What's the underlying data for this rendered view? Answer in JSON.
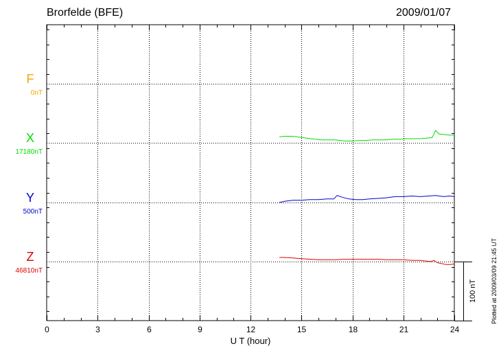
{
  "header": {
    "station": "Brorfelde (BFE)",
    "date": "2009/01/07"
  },
  "footer": {
    "plotted_note": "Plotted at 2009/03/09 21:45 UT"
  },
  "chart_data": {
    "type": "line",
    "xlabel": "U T (hour)",
    "xlim": [
      0,
      24
    ],
    "xticks": [
      0,
      3,
      6,
      9,
      12,
      15,
      18,
      21,
      24
    ],
    "x_tick_labels": [
      "0",
      "3",
      "6",
      "9",
      "12",
      "15",
      "18",
      "21",
      "24"
    ],
    "grid": true,
    "scale_bar_label": "100 nT",
    "scale_bar_nT": 100,
    "series": [
      {
        "name": "F",
        "baseline": "0nT",
        "color": "#f2a900",
        "x": [],
        "y": []
      },
      {
        "name": "X",
        "baseline": "17180nT",
        "color": "#00dd00",
        "x": [
          13.7,
          14.0,
          14.5,
          15.0,
          15.3,
          15.8,
          16.2,
          16.6,
          17.0,
          17.3,
          17.6,
          18.0,
          18.4,
          18.8,
          19.2,
          19.6,
          20.0,
          20.4,
          20.8,
          21.2,
          21.6,
          22.0,
          22.4,
          22.7,
          22.9,
          23.1,
          23.4,
          23.7,
          24.0
        ],
        "y": [
          10,
          11,
          11,
          9,
          8,
          6,
          5,
          5,
          5,
          4,
          3,
          3,
          4,
          4,
          5,
          5,
          5,
          6,
          6,
          7,
          7,
          7,
          8,
          9,
          21,
          15,
          14,
          13,
          13
        ]
      },
      {
        "name": "Y",
        "baseline": "500nT",
        "color": "#0000cc",
        "x": [
          13.7,
          14.0,
          14.5,
          15.0,
          15.5,
          16.0,
          16.5,
          16.9,
          17.1,
          17.4,
          17.8,
          18.2,
          18.6,
          19.0,
          19.5,
          20.0,
          20.5,
          21.0,
          21.5,
          22.0,
          22.5,
          22.9,
          23.1,
          23.4,
          23.7,
          24.0
        ],
        "y": [
          0,
          2,
          4,
          4,
          5,
          5,
          6,
          6,
          12,
          9,
          6,
          5,
          5,
          6,
          7,
          8,
          10,
          10,
          11,
          10,
          11,
          12,
          11,
          10,
          11,
          10
        ]
      },
      {
        "name": "Z",
        "baseline": "46810nT",
        "color": "#dd0000",
        "x": [
          13.7,
          14.0,
          14.5,
          15.0,
          15.5,
          16.0,
          16.5,
          17.0,
          17.5,
          18.0,
          18.5,
          19.0,
          19.5,
          20.0,
          20.5,
          21.0,
          21.5,
          22.0,
          22.3,
          22.6,
          22.8,
          23.0,
          23.2,
          23.5,
          23.8,
          24.0
        ],
        "y": [
          7,
          7,
          6,
          5,
          4,
          3,
          3,
          3,
          4,
          4,
          4,
          4,
          4,
          3,
          3,
          3,
          2,
          2,
          1,
          0,
          2,
          -2,
          -3,
          -5,
          -5,
          -4
        ]
      }
    ]
  }
}
